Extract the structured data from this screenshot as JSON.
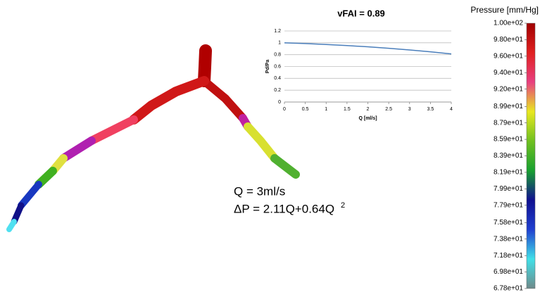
{
  "chart_data": [
    {
      "type": "line",
      "title": "vFAI = 0.89",
      "x_label": "Q [ml/s]",
      "y_label": "Pd/Pa",
      "x": [
        0,
        0.5,
        1,
        1.5,
        2,
        2.5,
        3,
        3.5,
        4
      ],
      "values": [
        1,
        0.988,
        0.972,
        0.954,
        0.932,
        0.907,
        0.879,
        0.848,
        0.813
      ],
      "color": "#4a7ebb",
      "xlim": [
        0,
        4
      ],
      "xticks": [
        0,
        0.5,
        1,
        1.5,
        2,
        2.5,
        3,
        3.5,
        4
      ],
      "ylim": [
        0,
        1.2
      ],
      "yticks": [
        0,
        0.2,
        0.4,
        0.6,
        0.8,
        1,
        1.2
      ],
      "grid": true
    },
    {
      "type": "colorbar",
      "title": "Pressure [mm/Hg]",
      "ylim": [
        67.8,
        100
      ],
      "yticks": [
        {
          "value": 100,
          "label": "1.00e+02"
        },
        {
          "value": 98.0,
          "label": "9.80e+01"
        },
        {
          "value": 96.0,
          "label": "9.60e+01"
        },
        {
          "value": 94.0,
          "label": "9.40e+01"
        },
        {
          "value": 92.0,
          "label": "9.20e+01"
        },
        {
          "value": 89.9,
          "label": "8.99e+01"
        },
        {
          "value": 87.9,
          "label": "8.79e+01"
        },
        {
          "value": 85.9,
          "label": "8.59e+01"
        },
        {
          "value": 83.9,
          "label": "8.39e+01"
        },
        {
          "value": 81.9,
          "label": "8.19e+01"
        },
        {
          "value": 79.9,
          "label": "7.99e+01"
        },
        {
          "value": 77.9,
          "label": "7.79e+01"
        },
        {
          "value": 75.8,
          "label": "7.58e+01"
        },
        {
          "value": 73.8,
          "label": "7.38e+01"
        },
        {
          "value": 71.8,
          "label": "7.18e+01"
        },
        {
          "value": 69.8,
          "label": "6.98e+01"
        },
        {
          "value": 67.8,
          "label": "6.78e+01"
        }
      ],
      "colors": [
        "#6f8a8a",
        "#40e0e8",
        "#2040d0",
        "#101090",
        "#18a030",
        "#70c020",
        "#e8e820",
        "#e84080",
        "#e02020",
        "#a00000"
      ]
    }
  ],
  "formula": {
    "flow": "Q = 3ml/s",
    "pressure_drop": "ΔP = 2.11Q+0.64Q",
    "exponent": "2"
  }
}
